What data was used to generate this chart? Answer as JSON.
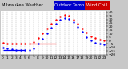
{
  "title_left": "Milwaukee Weather",
  "title_blue_label": "Outdoor Temp",
  "title_red_label": "Wind Chill",
  "hours": [
    0,
    1,
    2,
    3,
    4,
    5,
    6,
    7,
    8,
    9,
    10,
    11,
    12,
    13,
    14,
    15,
    16,
    17,
    18,
    19,
    20,
    21,
    22,
    23
  ],
  "outdoor_temp": [
    -3,
    -4,
    -4,
    -5,
    -5,
    -5,
    -4,
    -2,
    3,
    10,
    17,
    24,
    29,
    34,
    36,
    35,
    30,
    24,
    17,
    11,
    6,
    3,
    1,
    0
  ],
  "wind_chill": [
    -10,
    -11,
    -12,
    -13,
    -14,
    -14,
    -13,
    -11,
    -5,
    2,
    10,
    18,
    24,
    30,
    32,
    31,
    26,
    19,
    12,
    5,
    0,
    -3,
    -5,
    -6
  ],
  "temp_color": "#ff0000",
  "chill_color": "#0000ff",
  "bg_color": "#c8c8c8",
  "plot_bg": "#ffffff",
  "ylim": [
    -20,
    42
  ],
  "ytick_values": [
    40,
    35,
    30,
    25,
    20,
    15,
    10,
    5,
    0,
    -5,
    -10,
    -15,
    -20
  ],
  "grid_color": "#888888",
  "title_bg_blue": "#0000cc",
  "title_bg_red": "#cc0000",
  "title_fontsize": 3.8,
  "tick_fontsize": 3.2,
  "marker_size": 1.5,
  "blue_line_x": [
    0,
    5
  ],
  "blue_line_y": [
    -13,
    -13
  ],
  "red_line_x": [
    6,
    12
  ],
  "red_line_y": [
    -4,
    -4
  ]
}
